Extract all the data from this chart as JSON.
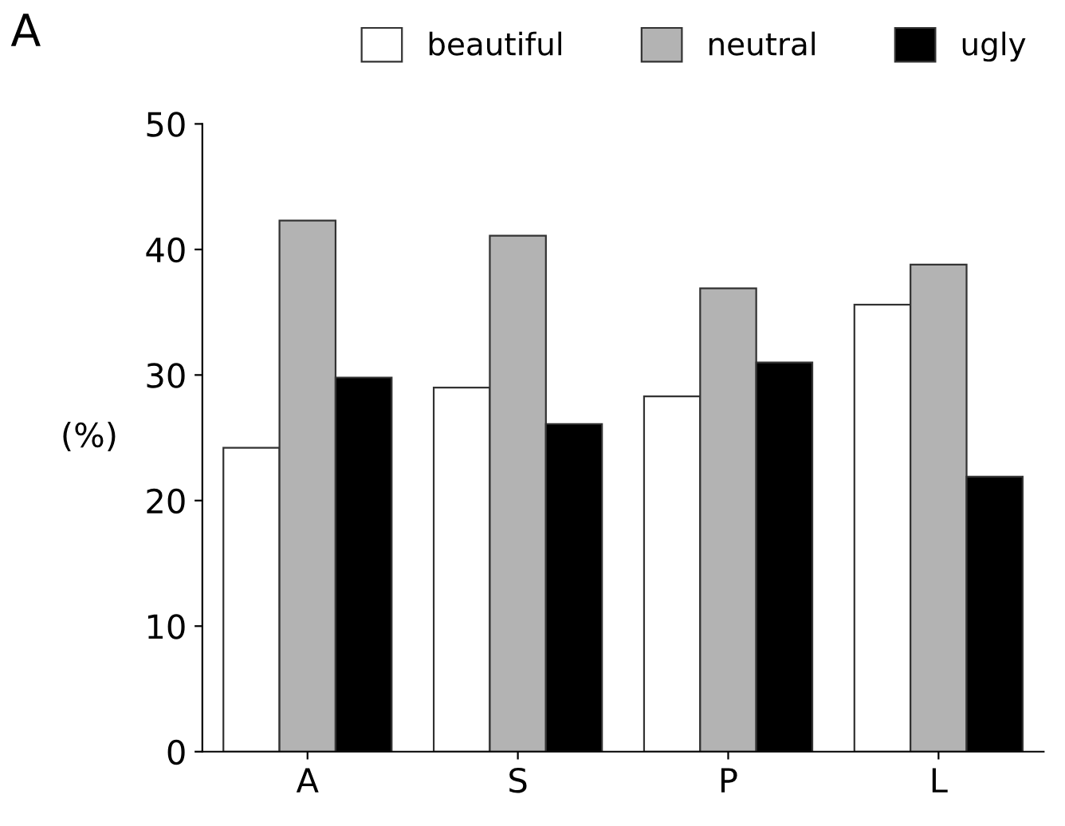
{
  "chart_data": {
    "type": "bar",
    "title": "A",
    "ylabel": "(%)",
    "categories": [
      "A",
      "S",
      "P",
      "L"
    ],
    "series": [
      {
        "name": "beautiful",
        "color": "#ffffff",
        "values": [
          24.2,
          29.0,
          28.3,
          35.6
        ]
      },
      {
        "name": "neutral",
        "color": "#b3b3b3",
        "values": [
          42.3,
          41.1,
          36.9,
          38.8
        ]
      },
      {
        "name": "ugly",
        "color": "#000000",
        "values": [
          29.8,
          26.1,
          31.0,
          21.9
        ]
      }
    ],
    "ylim": [
      0,
      50
    ],
    "yticks": [
      0,
      10,
      20,
      30,
      40,
      50
    ],
    "grid": false,
    "legend": "top"
  }
}
